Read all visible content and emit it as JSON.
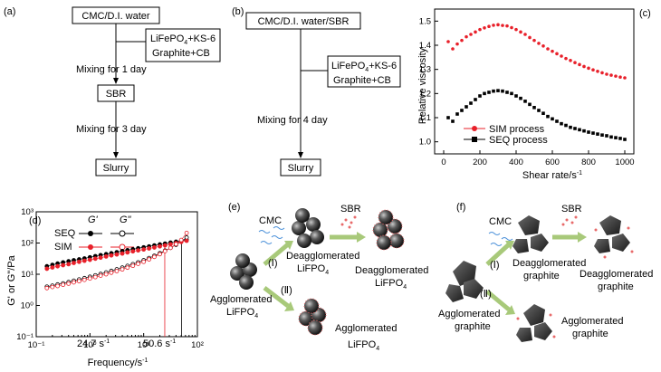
{
  "panel_a": {
    "label": "(a)",
    "box1": "CMC/D.I. water",
    "box2_line1_a": "LiFePO",
    "box2_line1_sub": "4",
    "box2_line1_b": "+KS-6",
    "box2_line2": "Graphite+CB",
    "step1": "Mixing for 1 day",
    "box3": "SBR",
    "step2": "Mixing for 3 day",
    "box4": "Slurry"
  },
  "panel_b": {
    "label": "(b)",
    "box1": "CMC/D.I. water/SBR",
    "box2_line1_a": "LiFePO",
    "box2_line1_sub": "4",
    "box2_line1_b": "+KS-6",
    "box2_line2": "Graphite+CB",
    "step1": "Mixing for 4 day",
    "box3": "Slurry"
  },
  "panel_e": {
    "label": "(e)",
    "cmc": "CMC",
    "sbr": "SBR",
    "route1": "(Ⅰ)",
    "route2": "(Ⅱ)",
    "deagg1_a": "Deagglomerated",
    "deagg1_b": "LiFPO",
    "deagg2_a": "Deagglomerated",
    "deagg2_b": "LiFPO",
    "agg_a": "Agglomerated",
    "agg_b": "LiFPO",
    "agg2_a": "Agglomerated",
    "agg2_b": "LiFPO",
    "sub": "4"
  },
  "panel_f": {
    "label": "(f)",
    "cmc": "CMC",
    "sbr": "SBR",
    "route1": "(Ⅰ)",
    "route2": "(Ⅱ)",
    "deagg1_a": "Deagglomerated",
    "deagg1_b": "graphite",
    "deagg2_a": "Deagglomerated",
    "deagg2_b": "graphite",
    "agg_a": "Agglomerated",
    "agg_b": "graphite",
    "agg2_a": "Agglomerated",
    "agg2_b": "graphite"
  },
  "colors": {
    "sim": "#e8202a",
    "seq": "#000000",
    "cmc_fiber": "#4a90d9",
    "sbr_dot": "#e86a6a",
    "arrow": "#a8c97a"
  },
  "chart_data": [
    {
      "panel": "(c)",
      "type": "scatter",
      "xlabel": "Shear rate/s",
      "xlabel_sup": "-1",
      "ylabel": "Relative viscosity",
      "xlim": [
        -50,
        1050
      ],
      "ylim": [
        0.95,
        1.55
      ],
      "xticks": [
        "0",
        "200",
        "400",
        "600",
        "800",
        "1000"
      ],
      "yticks": [
        "1.0",
        "1.1",
        "1.2",
        "1.3",
        "1.4",
        "1.5"
      ],
      "legend_position": "bottom-left",
      "series": [
        {
          "name": "SIM process",
          "marker": "circle",
          "color": "#e8202a",
          "x": [
            25,
            50,
            75,
            100,
            125,
            150,
            175,
            200,
            225,
            250,
            275,
            300,
            325,
            350,
            375,
            400,
            425,
            450,
            475,
            500,
            525,
            550,
            575,
            600,
            625,
            650,
            675,
            700,
            725,
            750,
            775,
            800,
            825,
            850,
            875,
            900,
            925,
            950,
            975,
            1000
          ],
          "y": [
            1.415,
            1.385,
            1.405,
            1.42,
            1.435,
            1.445,
            1.455,
            1.465,
            1.472,
            1.478,
            1.483,
            1.485,
            1.482,
            1.48,
            1.473,
            1.465,
            1.455,
            1.445,
            1.432,
            1.42,
            1.408,
            1.397,
            1.385,
            1.375,
            1.365,
            1.355,
            1.345,
            1.337,
            1.328,
            1.32,
            1.312,
            1.305,
            1.298,
            1.292,
            1.286,
            1.28,
            1.276,
            1.272,
            1.268,
            1.265
          ]
        },
        {
          "name": "SEQ process",
          "marker": "square",
          "color": "#000000",
          "x": [
            25,
            50,
            75,
            100,
            125,
            150,
            175,
            200,
            225,
            250,
            275,
            300,
            325,
            350,
            375,
            400,
            425,
            450,
            475,
            500,
            525,
            550,
            575,
            600,
            625,
            650,
            675,
            700,
            725,
            750,
            775,
            800,
            825,
            850,
            875,
            900,
            925,
            950,
            975,
            1000
          ],
          "y": [
            1.1,
            1.085,
            1.115,
            1.13,
            1.145,
            1.16,
            1.175,
            1.19,
            1.2,
            1.205,
            1.21,
            1.212,
            1.21,
            1.205,
            1.2,
            1.19,
            1.18,
            1.168,
            1.155,
            1.142,
            1.13,
            1.118,
            1.105,
            1.095,
            1.085,
            1.075,
            1.068,
            1.06,
            1.055,
            1.05,
            1.045,
            1.04,
            1.036,
            1.032,
            1.028,
            1.025,
            1.02,
            1.017,
            1.014,
            1.01
          ]
        }
      ]
    },
    {
      "panel": "(d)",
      "type": "scatter",
      "xlabel": "Frequency/s",
      "xlabel_sup": "-1",
      "ylabel": "G' or G\"/Pa",
      "x_scale": "log",
      "y_scale": "log",
      "xlim": [
        0.1,
        100
      ],
      "ylim": [
        0.1,
        1000
      ],
      "xticks": [
        "10⁻¹",
        "10⁰",
        "10¹",
        "10²"
      ],
      "yticks": [
        "10⁻¹",
        "10⁰",
        "10¹",
        "10²",
        "10³"
      ],
      "legend_header": [
        "G'",
        "G\""
      ],
      "legend_rows": [
        "SEQ",
        "SIM"
      ],
      "annotations": [
        {
          "text": "24.7 s",
          "sup": "-1",
          "x": 24.7
        },
        {
          "text": "50.6 s",
          "sup": "-1",
          "x": 50.6
        }
      ],
      "series": [
        {
          "name": "SEQ G'",
          "color": "#000000",
          "filled": true,
          "x": [
            0.158,
            0.2,
            0.25,
            0.316,
            0.4,
            0.5,
            0.63,
            0.79,
            1,
            1.26,
            1.58,
            2,
            2.5,
            3.16,
            4,
            5,
            6.3,
            7.9,
            10,
            12.6,
            15.8,
            20,
            25,
            31.6,
            40,
            50,
            63
          ],
          "y": [
            18,
            20,
            22,
            24,
            26,
            28,
            30,
            32,
            35,
            38,
            41,
            44,
            47,
            51,
            55,
            59,
            63,
            68,
            73,
            78,
            84,
            90,
            96,
            103,
            110,
            118,
            126
          ]
        },
        {
          "name": "SEQ G\"",
          "color": "#000000",
          "filled": false,
          "x": [
            0.158,
            0.2,
            0.25,
            0.316,
            0.4,
            0.5,
            0.63,
            0.79,
            1,
            1.26,
            1.58,
            2,
            2.5,
            3.16,
            4,
            5,
            6.3,
            7.9,
            10,
            12.6,
            15.8,
            20,
            25,
            31.6,
            40,
            50,
            63
          ],
          "y": [
            4,
            4.3,
            4.7,
            5.1,
            5.6,
            6.2,
            6.8,
            7.5,
            8.3,
            9.2,
            10.2,
            11.4,
            12.8,
            14.4,
            16.3,
            18.5,
            21,
            24,
            28,
            33,
            39,
            47,
            57,
            70,
            88,
            112,
            150
          ]
        },
        {
          "name": "SIM G'",
          "color": "#e8202a",
          "filled": true,
          "x": [
            0.158,
            0.2,
            0.25,
            0.316,
            0.4,
            0.5,
            0.63,
            0.79,
            1,
            1.26,
            1.58,
            2,
            2.5,
            3.16,
            4,
            5,
            6.3,
            7.9,
            10,
            12.6,
            15.8,
            20,
            25,
            31.6,
            40,
            50,
            63
          ],
          "y": [
            15,
            16.5,
            18,
            19.5,
            21,
            23,
            25,
            27,
            29,
            31.5,
            34,
            37,
            40,
            43,
            46,
            50,
            54,
            58,
            62,
            67,
            72,
            78,
            84,
            91,
            99,
            108,
            118
          ]
        },
        {
          "name": "SIM G\"",
          "color": "#e8202a",
          "filled": false,
          "x": [
            0.158,
            0.2,
            0.25,
            0.316,
            0.4,
            0.5,
            0.63,
            0.79,
            1,
            1.26,
            1.58,
            2,
            2.5,
            3.16,
            4,
            5,
            6.3,
            7.9,
            10,
            12.6,
            15.8,
            20,
            25,
            31.6,
            40,
            50,
            63
          ],
          "y": [
            3.6,
            3.9,
            4.2,
            4.6,
            5,
            5.5,
            6,
            6.6,
            7.3,
            8.1,
            9,
            10,
            11.2,
            12.6,
            14.3,
            16.3,
            18.7,
            21.6,
            25,
            30,
            36,
            44,
            55,
            70,
            92,
            125,
            210
          ]
        }
      ]
    }
  ]
}
